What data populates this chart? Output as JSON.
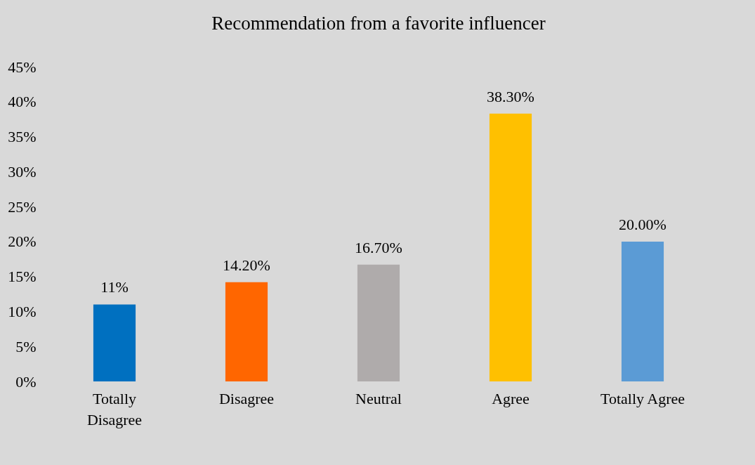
{
  "chart_data": {
    "type": "bar",
    "title": "Recommendation from a favorite influencer",
    "categories": [
      "Totally Disagree",
      "Disagree",
      "Neutral",
      "Agree",
      "Totally Agree"
    ],
    "values": [
      11,
      14.2,
      16.7,
      38.3,
      20
    ],
    "colors": [
      "#0070c0",
      "#ff6600",
      "#afabab",
      "#ffc000",
      "#5b9bd5"
    ],
    "value_labels": [
      "11%",
      "14.20%",
      "16.70%",
      "38.30%",
      "20.00%"
    ],
    "ylim": [
      0,
      45
    ],
    "yticks": [
      {
        "value": 0,
        "label": "0%"
      },
      {
        "value": 5,
        "label": "5%"
      },
      {
        "value": 10,
        "label": "10%"
      },
      {
        "value": 15,
        "label": "15%"
      },
      {
        "value": 20,
        "label": "20%"
      },
      {
        "value": 25,
        "label": "25%"
      },
      {
        "value": 30,
        "label": "30%"
      },
      {
        "value": 35,
        "label": "35%"
      },
      {
        "value": 40,
        "label": "40%"
      },
      {
        "value": 45,
        "label": "45%"
      }
    ],
    "grid": false,
    "legend": false
  }
}
